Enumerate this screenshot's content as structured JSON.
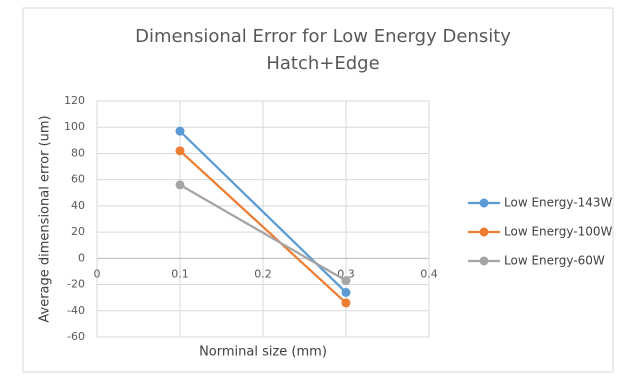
{
  "chart_data": {
    "type": "line",
    "title": [
      "Dimensional Error for Low Energy Density",
      "Hatch+Edge"
    ],
    "x_label": "Norminal size (mm)",
    "y_label": "Average dimensional error (um)",
    "x": [
      0.1,
      0.3
    ],
    "series": [
      {
        "name": "Low Energy-143W",
        "color": "#5b9bd5",
        "values": [
          97,
          -26
        ]
      },
      {
        "name": "Low Energy-100W",
        "color": "#ed7d31",
        "values": [
          82,
          -34
        ]
      },
      {
        "name": "Low Energy-60W",
        "color": "#a5a5a5",
        "values": [
          56,
          -17
        ]
      }
    ],
    "xlim": [
      0,
      0.4
    ],
    "xticks": [
      0,
      0.1,
      0.2,
      0.3,
      0.4
    ],
    "ylim": [
      -60,
      120
    ],
    "yticks": [
      -60,
      -40,
      -20,
      0,
      20,
      40,
      60,
      80,
      100,
      120
    ],
    "grid": true,
    "legend": "right"
  }
}
